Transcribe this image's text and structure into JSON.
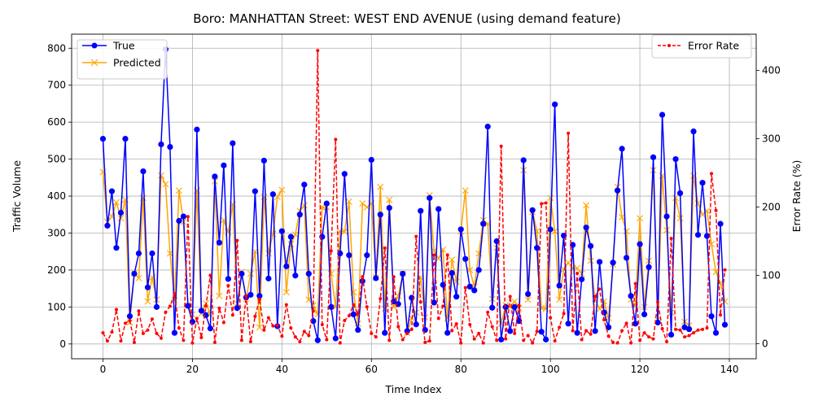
{
  "chart_data": {
    "type": "line",
    "title": "Boro: MANHATTAN Street: WEST END AVENUE (using demand feature)",
    "xlabel": "Time Index",
    "ylabel": "Traffic Volume",
    "y2label": "Error Rate (%)",
    "xlim": [
      -7,
      146
    ],
    "ylim": [
      -40,
      838
    ],
    "y2lim": [
      -22,
      453
    ],
    "xticks": [
      0,
      20,
      40,
      60,
      80,
      100,
      120,
      140
    ],
    "yticks": [
      0,
      100,
      200,
      300,
      400,
      500,
      600,
      700,
      800
    ],
    "y2ticks": [
      0,
      100,
      200,
      300,
      400
    ],
    "grid": true,
    "legend_left": "upper-left",
    "legend_right": "upper-right",
    "series": [
      {
        "name": "True",
        "axis": "left",
        "color": "#0000ff",
        "marker": "circle",
        "values": [
          555,
          320,
          413,
          260,
          355,
          555,
          75,
          190,
          245,
          467,
          153,
          245,
          100,
          540,
          797,
          533,
          30,
          333,
          345,
          103,
          60,
          580,
          90,
          78,
          42,
          453,
          274,
          483,
          176,
          543,
          97,
          190,
          126,
          133,
          413,
          130,
          496,
          177,
          405,
          48,
          305,
          210,
          290,
          185,
          350,
          431,
          190,
          62,
          10,
          290,
          380,
          100,
          15,
          245,
          460,
          240,
          80,
          38,
          170,
          240,
          498,
          178,
          350,
          30,
          368,
          115,
          108,
          190,
          35,
          125,
          53,
          360,
          38,
          395,
          112,
          365,
          160,
          30,
          192,
          128,
          310,
          230,
          155,
          145,
          200,
          325,
          588,
          98,
          278,
          12,
          100,
          35,
          100,
          62,
          497,
          135,
          362,
          260,
          33,
          12,
          310,
          648,
          158,
          293,
          55,
          268,
          30,
          175,
          315,
          265,
          35,
          222,
          85,
          45,
          220,
          415,
          528,
          233,
          130,
          55,
          270,
          80,
          208,
          505,
          58,
          620,
          345,
          25,
          500,
          408,
          45,
          40,
          575,
          295,
          436,
          292,
          75,
          30,
          325,
          52
        ]
      },
      {
        "name": "Predicted",
        "axis": "left",
        "color": "#ffa500",
        "marker": "x",
        "values": [
          465,
          330,
          345,
          383,
          340,
          390,
          58,
          192,
          178,
          395,
          115,
          180,
          120,
          456,
          432,
          245,
          118,
          415,
          330,
          105,
          80,
          415,
          82,
          110,
          80,
          440,
          130,
          335,
          302,
          378,
          110,
          195,
          122,
          190,
          250,
          45,
          398,
          245,
          298,
          398,
          417,
          140,
          270,
          296,
          360,
          375,
          120,
          105,
          80,
          370,
          370,
          190,
          100,
          305,
          304,
          385,
          140,
          55,
          380,
          370,
          380,
          180,
          425,
          95,
          390,
          100,
          130,
          190,
          30,
          70,
          85,
          180,
          72,
          402,
          252,
          231,
          255,
          70,
          228,
          168,
          305,
          415,
          200,
          155,
          245,
          335,
          325,
          122,
          260,
          55,
          105,
          100,
          115,
          97,
          470,
          120,
          357,
          305,
          97,
          95,
          395,
          305,
          120,
          202,
          220,
          205,
          205,
          190,
          375,
          225,
          122,
          95,
          115,
          70,
          215,
          425,
          343,
          305,
          120,
          105,
          340,
          100,
          225,
          470,
          65,
          455,
          308,
          85,
          395,
          340,
          60,
          50,
          455,
          380,
          350,
          360,
          270,
          195,
          165,
          115
        ]
      },
      {
        "name": "Error Rate",
        "axis": "right",
        "color": "#ff0000",
        "style": "dashed",
        "marker": "dot",
        "values": [
          16,
          4,
          17,
          50,
          4,
          30,
          34,
          2,
          48,
          15,
          20,
          36,
          15,
          8,
          46,
          55,
          73,
          23,
          5,
          186,
          1,
          37,
          9,
          55,
          100,
          2,
          52,
          31,
          85,
          42,
          151,
          5,
          70,
          3,
          40,
          65,
          20,
          38,
          26,
          27,
          11,
          57,
          23,
          10,
          3,
          18,
          12,
          48,
          429,
          28,
          6,
          136,
          299,
          1,
          34,
          41,
          57,
          43,
          98,
          54,
          15,
          10,
          66,
          140,
          5,
          98,
          25,
          6,
          15,
          21,
          157,
          61,
          2,
          4,
          130,
          37,
          55,
          130,
          19,
          29,
          1,
          82,
          28,
          7,
          15,
          1,
          46,
          25,
          5,
          289,
          7,
          69,
          15,
          56,
          5,
          12,
          1,
          18,
          205,
          206,
          38,
          4,
          24,
          44,
          308,
          19,
          103,
          6,
          19,
          14,
          69,
          80,
          35,
          11,
          2,
          1,
          19,
          30,
          1,
          88,
          5,
          16,
          10,
          7,
          61,
          22,
          3,
          154,
          21,
          20,
          10,
          12,
          16,
          20,
          21,
          23,
          249,
          195,
          42,
          108
        ]
      }
    ]
  }
}
